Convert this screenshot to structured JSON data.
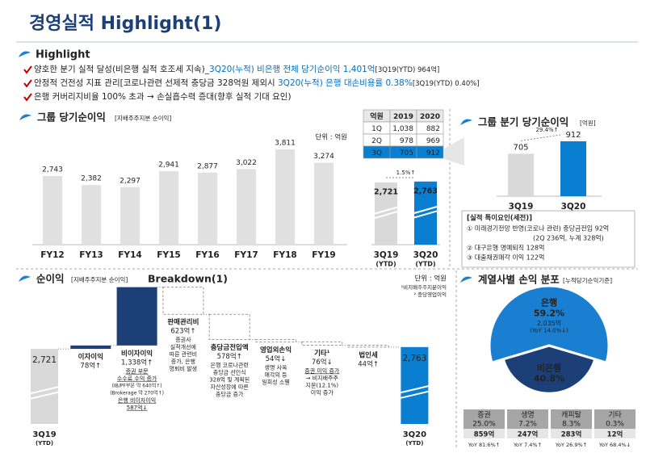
{
  "title": "경영실적 Highlight(1)",
  "highlight": {
    "heading": "Highlight",
    "items": [
      [
        {
          "text": "양호한 분기 실적 달성(비은행 실적 호조세 지속)_",
          "style": "normal"
        },
        {
          "text": "3Q20(누적) 비은행 전체 당기순이익 1,401억",
          "style": "emphasis"
        },
        {
          "text": "[3Q19(YTD) 964억]",
          "style": "note"
        }
      ],
      [
        {
          "text": "안정적 건전성 지표 관리[코로나관련 선제적 충당금 328억원 제외시 ",
          "style": "normal"
        },
        {
          "text": "3Q20(누적) 은행 대손비용률 0.38%",
          "style": "emphasis"
        },
        {
          "text": "[3Q19(YTD) 0.40%]",
          "style": "note"
        }
      ],
      [
        {
          "text": "은행 커버리지비율 100% 초과 → 손실흡수력 증대(향후 실적 기대 요인)",
          "style": "normal"
        }
      ]
    ]
  },
  "table": {
    "header": [
      "억원",
      "2019",
      "2020"
    ],
    "rows": [
      [
        "1Q",
        "1,038",
        "882"
      ],
      [
        "2Q",
        "978",
        "969"
      ],
      [
        "3Q",
        "705",
        "912"
      ]
    ],
    "highlight_row": 2
  },
  "special_factors": {
    "title": "[실적 특이요인(세전)]",
    "items": [
      "① 미래경기전망 반영(코로나 관련) 충당금전입 92억",
      "(2Q 236억, 누계 328억)",
      "② 대구은행 명예퇴직 128억",
      "③ 대출채권매각 이익 122억"
    ]
  },
  "subsidiaries": [
    {
      "name": "증권",
      "share": "25.0%",
      "profit": "859억",
      "yoy": "YoY 81.6%↑"
    },
    {
      "name": "생명",
      "share": "7.2%",
      "profit": "247억",
      "yoy": "YoY 7.4%↑"
    },
    {
      "name": "캐피탈",
      "share": "8.3%",
      "profit": "283억",
      "yoy": "YoY 26.9%↑"
    },
    {
      "name": "기타",
      "share": "0.3%",
      "profit": "12억",
      "yoy": "YoY 68.4%↓"
    }
  ],
  "chart_data": [
    {
      "type": "bar",
      "title": "그룹 당기순이익",
      "subtitle": "[지배주주지분 순이익]",
      "unit": "단위 : 억원",
      "categories": [
        "FY12",
        "FY13",
        "FY14",
        "FY15",
        "FY16",
        "FY17",
        "FY18",
        "FY19"
      ],
      "values": [
        2743,
        2382,
        2297,
        2941,
        2877,
        3022,
        3811,
        3274
      ],
      "value_labels": [
        "2,743",
        "2,382",
        "2,297",
        "2,941",
        "2,877",
        "3,022",
        "3,811",
        "3,274"
      ],
      "color": "#e0e0e0"
    },
    {
      "type": "bar",
      "categories": [
        "3Q19",
        "3Q20"
      ],
      "category_sublabels": [
        "(YTD)",
        "(YTD)"
      ],
      "values": [
        2721,
        2763
      ],
      "value_labels": [
        "2,721",
        "2,763"
      ],
      "colors": [
        "#d9d9d9",
        "#0a7fd1"
      ],
      "highlight_category": 1,
      "annotation": "1.5%↑"
    },
    {
      "type": "bar",
      "title": "그룹 분기 당기순이익",
      "subtitle": "[억원]",
      "categories": [
        "3Q19",
        "3Q20"
      ],
      "values": [
        705,
        912
      ],
      "colors": [
        "#d9d9d9",
        "#0a7fd1"
      ],
      "highlight_category": 1,
      "annotation": "29.4%↑"
    },
    {
      "type": "waterfall",
      "title": "순이익",
      "subtitle": "[지배주주지분 순이익]",
      "title_suffix": "Breakdown(1)",
      "unit": "단위 : 억원",
      "footnotes": [
        "¹비지배주주지분이익",
        "² 충당영업이익"
      ],
      "categories": [
        "3Q19",
        "이자이익",
        "비이자이익",
        "판매관리비",
        "충당금전입액",
        "영업외손익",
        "기타¹",
        "법인세",
        "3Q20"
      ],
      "category_sublabels": [
        "(YTD)",
        null,
        null,
        null,
        null,
        null,
        null,
        null,
        "(YTD)"
      ],
      "values": [
        2721,
        78,
        1338,
        623,
        578,
        54,
        76,
        44,
        2763
      ],
      "value_labels": [
        "2,721",
        "78억↑",
        "1,338억↑",
        "623억↑",
        "578억↑",
        "54억↓",
        "76억↓",
        "44억↑",
        "2,763"
      ],
      "effects": [
        "total",
        "increase",
        "increase",
        "decrease",
        "decrease",
        "decrease",
        "decrease",
        "decrease",
        "total"
      ],
      "colors": [
        "#d9d9d9",
        "#1d3f78",
        "#1d3f78",
        "#ffffff",
        "#ffffff",
        "#ffffff",
        "#ffffff",
        "#ffffff",
        "#0a7fd1"
      ],
      "highlight_category": 8,
      "notes": [
        [],
        [],
        [
          {
            "text": "증권 부문",
            "style": "red"
          },
          {
            "text": "수수료 수익 증가",
            "style": "red"
          },
          {
            "text": "(IB/PF부문 약 640억↑)",
            "style": "small"
          },
          {
            "text": "(Brokerage 약 270억↑)",
            "style": "small"
          },
          {
            "text": "은행 비이자이익",
            "style": "red"
          },
          {
            "text": "587억↓",
            "style": "red"
          }
        ],
        [
          {
            "text": "증권사",
            "style": "plain"
          },
          {
            "text": "실적개선에",
            "style": "plain"
          },
          {
            "text": "따른 관련비",
            "style": "plain"
          },
          {
            "text": "증가, 은행",
            "style": "plain"
          },
          {
            "text": "명퇴비 발생",
            "style": "plain"
          }
        ],
        [
          {
            "text": "은행 코로나관련",
            "style": "plain"
          },
          {
            "text": "충당금 선인식",
            "style": "plain"
          },
          {
            "text": "328억 및 계획된",
            "style": "plain"
          },
          {
            "text": "자산성장에 따른",
            "style": "plain"
          },
          {
            "text": "충당금 증가",
            "style": "plain"
          }
        ],
        [
          {
            "text": "생명 사옥",
            "style": "plain"
          },
          {
            "text": "매각의 등",
            "style": "plain"
          },
          {
            "text": "일회성 소멸",
            "style": "plain"
          }
        ],
        [
          {
            "text": "증권 이익 증가",
            "style": "red"
          },
          {
            "text": "→ 비지배주주",
            "style": "plain"
          },
          {
            "text": "지분(12.1%)",
            "style": "plain"
          },
          {
            "text": "이익 증가",
            "style": "plain"
          }
        ],
        [],
        []
      ]
    },
    {
      "type": "pie",
      "title": "계열사별 손익 분포",
      "subtitle": "[누적당기순익기준]",
      "categories": [
        "은행",
        "비은행"
      ],
      "values": [
        59.2,
        40.8
      ],
      "value_labels": [
        "59.2%",
        "40.8%"
      ],
      "details": [
        "2,035억",
        null
      ],
      "yoy": [
        "(YoY 14.0%↓)",
        null
      ],
      "colors": [
        "#1a7fd0",
        "#1d3f78"
      ]
    }
  ]
}
